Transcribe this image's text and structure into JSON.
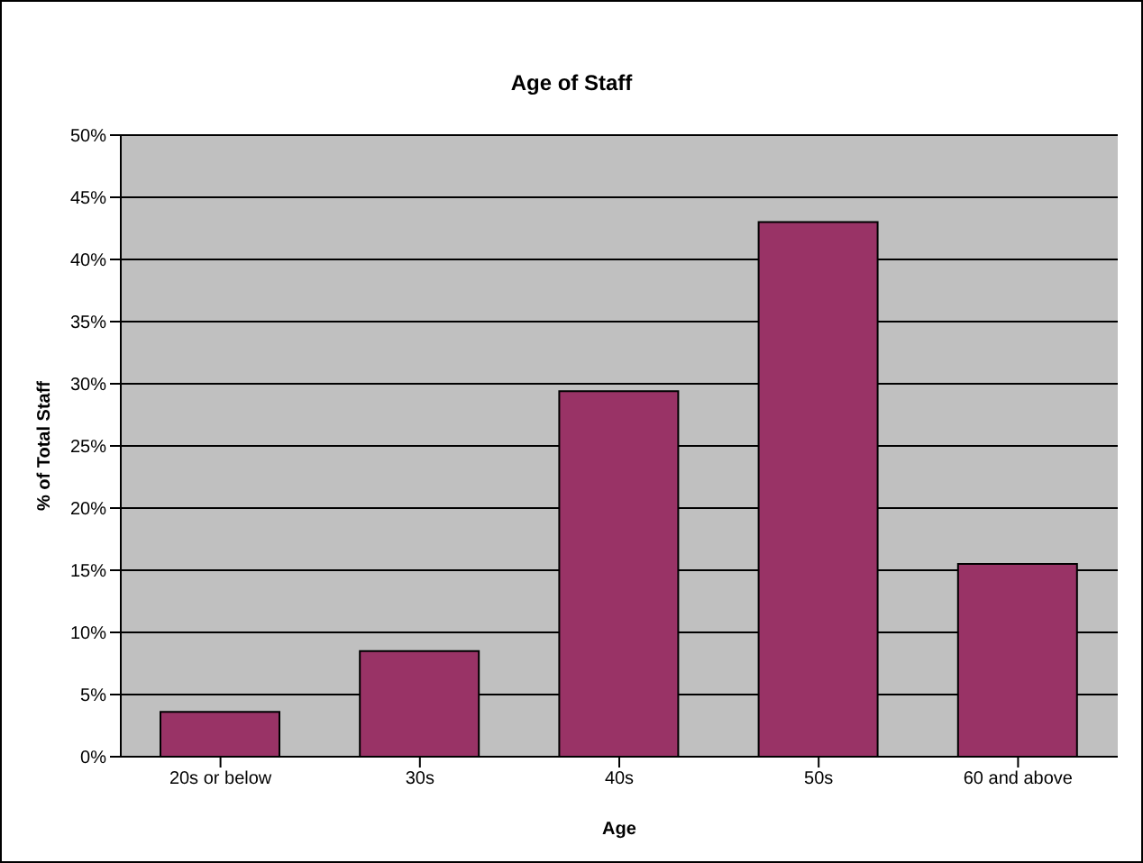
{
  "chart_data": {
    "type": "bar",
    "title": "Age of Staff",
    "xlabel": "Age",
    "ylabel": "% of Total Staff",
    "categories": [
      "20s or below",
      "30s",
      "40s",
      "50s",
      "60 and above"
    ],
    "values": [
      3.6,
      8.5,
      29.4,
      43,
      15.5
    ],
    "color": "#993366",
    "ylim": [
      0,
      50
    ],
    "yticks": [
      {
        "value": 0,
        "label": "0%"
      },
      {
        "value": 5,
        "label": "5%"
      },
      {
        "value": 10,
        "label": "10%"
      },
      {
        "value": 15,
        "label": "15%"
      },
      {
        "value": 20,
        "label": "20%"
      },
      {
        "value": 25,
        "label": "25%"
      },
      {
        "value": 30,
        "label": "30%"
      },
      {
        "value": 35,
        "label": "35%"
      },
      {
        "value": 40,
        "label": "40%"
      },
      {
        "value": 45,
        "label": "45%"
      },
      {
        "value": 50,
        "label": "50%"
      }
    ],
    "grid": "y",
    "legend": false
  }
}
